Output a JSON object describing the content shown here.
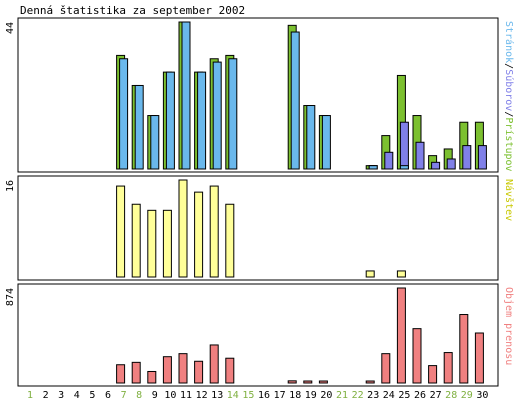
{
  "chart_data": {
    "type": "bar",
    "title": "Denná štatistika za september 2002",
    "days": [
      1,
      2,
      3,
      4,
      5,
      6,
      7,
      8,
      9,
      10,
      11,
      12,
      13,
      14,
      15,
      16,
      17,
      18,
      19,
      20,
      21,
      22,
      23,
      24,
      25,
      26,
      27,
      28,
      29,
      30
    ],
    "weekend_days": [
      1,
      7,
      8,
      14,
      15,
      21,
      22,
      28,
      29
    ],
    "colors": {
      "weekday_label": "#000000",
      "weekend_label": "#7fb040",
      "pages": "#6ab8ec",
      "files": "#8080e8",
      "hits": "#7cc030",
      "visits": "#ffff99",
      "bytes": "#f08080",
      "frame": "#000000"
    },
    "panels": [
      {
        "id": "traffic",
        "max_label": "44",
        "ymax": 44,
        "axis_label_parts": [
          {
            "text": "Stránok",
            "color": "#6ab8ec"
          },
          {
            "text": "/",
            "color": "#000000"
          },
          {
            "text": "Súborov",
            "color": "#8080e8"
          },
          {
            "text": "/",
            "color": "#000000"
          },
          {
            "text": "Prístupov",
            "color": "#7cc030"
          }
        ],
        "series": [
          {
            "key": "hits",
            "values": [
              0,
              0,
              0,
              0,
              0,
              0,
              34,
              25,
              16,
              29,
              44,
              29,
              33,
              34,
              0,
              0,
              0,
              43,
              19,
              16,
              0,
              0,
              1,
              10,
              28,
              16,
              4,
              6,
              14,
              14
            ]
          },
          {
            "key": "files",
            "values": [
              0,
              0,
              0,
              0,
              0,
              0,
              0,
              0,
              0,
              0,
              0,
              0,
              0,
              0,
              0,
              0,
              0,
              0,
              0,
              0,
              0,
              0,
              1,
              5,
              14,
              8,
              2,
              3,
              7,
              7
            ]
          },
          {
            "key": "pages",
            "values": [
              0,
              0,
              0,
              0,
              0,
              0,
              33,
              25,
              16,
              29,
              44,
              29,
              32,
              33,
              0,
              0,
              0,
              41,
              19,
              16,
              0,
              0,
              1,
              0,
              1,
              0,
              0,
              0,
              0,
              0
            ]
          }
        ]
      },
      {
        "id": "visits",
        "max_label": "16",
        "ymax": 16,
        "axis_label_parts": [
          {
            "text": "Návštev",
            "color": "#c8c800"
          }
        ],
        "series": [
          {
            "key": "visits",
            "values": [
              0,
              0,
              0,
              0,
              0,
              0,
              15,
              12,
              11,
              11,
              16,
              14,
              15,
              12,
              0,
              0,
              0,
              0,
              0,
              0,
              0,
              0,
              1,
              0,
              1,
              0,
              0,
              0,
              0,
              0
            ]
          }
        ]
      },
      {
        "id": "bytes",
        "max_label": "874",
        "ymax": 874,
        "axis_label_parts": [
          {
            "text": "Objem prenosu",
            "color": "#f08080"
          }
        ],
        "series": [
          {
            "key": "bytes",
            "values": [
              0,
              0,
              0,
              0,
              0,
              0,
              168,
              190,
              106,
              242,
              270,
              200,
              350,
              228,
              0,
              0,
              0,
              20,
              10,
              10,
              0,
              0,
              10,
              270,
              874,
              500,
              160,
              280,
              630,
              460
            ]
          }
        ]
      }
    ]
  }
}
